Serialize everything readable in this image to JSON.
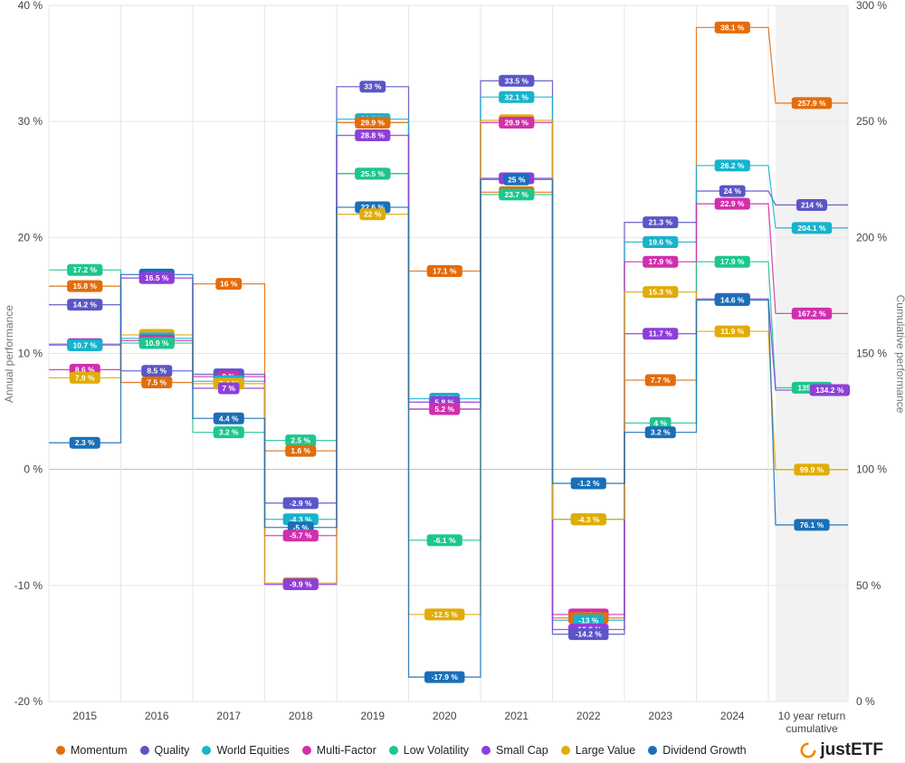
{
  "chart_data": {
    "type": "step-line",
    "ylabel": "Annual performance",
    "y2label": "Cumulative performance",
    "ylim": [
      -20,
      40
    ],
    "y2lim": [
      0,
      300
    ],
    "yticks": [
      "40 %",
      "30 %",
      "20 %",
      "10 %",
      "0 %",
      "-10 %",
      "-20 %"
    ],
    "y2ticks": [
      "300 %",
      "250 %",
      "200 %",
      "150 %",
      "100 %",
      "50 %",
      "0 %"
    ],
    "categories": [
      "2015",
      "2016",
      "2017",
      "2018",
      "2019",
      "2020",
      "2021",
      "2022",
      "2023",
      "2024"
    ],
    "cumulative_label": [
      "10 year return",
      "cumulative"
    ],
    "grid": true,
    "legend_position": "bottom",
    "series": [
      {
        "name": "Momentum",
        "color": "#e46c0a",
        "values": [
          15.8,
          7.5,
          16,
          1.6,
          29.9,
          17.1,
          23.9,
          -12.8,
          7.7,
          38.1
        ],
        "labels": [
          "15.8 %",
          "7.5 %",
          "16 %",
          "1.6 %",
          "29.9 %",
          "17.1 %",
          "23.9 %",
          "-12.8 %",
          "7.7 %",
          "38.1 %"
        ],
        "cumulative": 257.9,
        "cumulative_label": "257.9 %"
      },
      {
        "name": "Quality",
        "color": "#5b56c7",
        "values": [
          14.2,
          8.5,
          8.2,
          -2.9,
          33,
          5.2,
          33.5,
          -14.2,
          21.3,
          24
        ],
        "labels": [
          "14.2 %",
          "8.5 %",
          "8.2 %",
          "-2.9 %",
          "33 %",
          "5.2 %",
          "33.5 %",
          "-14.2 %",
          "21.3 %",
          "24 %"
        ],
        "cumulative": 214,
        "cumulative_label": "214 %"
      },
      {
        "name": "World Equities",
        "color": "#17b3cc",
        "values": [
          10.7,
          11.3,
          7.6,
          -4.3,
          30.2,
          6.1,
          32.1,
          -13,
          19.6,
          26.2
        ],
        "labels": [
          "10.7 %",
          "11.3 %",
          "7.6 %",
          "-4.3 %",
          "30.2 %",
          "6.1 %",
          "32.1 %",
          "-13 %",
          "19.6 %",
          "26.2 %"
        ],
        "cumulative": 204.1,
        "cumulative_label": "204.1 %"
      },
      {
        "name": "Multi-Factor",
        "color": "#d12fad",
        "values": [
          8.6,
          11.1,
          8,
          -5.7,
          25.5,
          5.2,
          29.9,
          -12.5,
          17.9,
          22.9
        ],
        "labels": [
          "8.6 %",
          "11.1 %",
          "8 %",
          "-5.7 %",
          "25.5 %",
          "5.2 %",
          "29.9 %",
          "-12.5 %",
          "17.9 %",
          "22.9 %"
        ],
        "cumulative": 167.2,
        "cumulative_label": "167.2 %"
      },
      {
        "name": "Low Volatility",
        "color": "#1dc68f",
        "values": [
          17.2,
          10.9,
          3.2,
          2.5,
          25.5,
          -6.1,
          23.7,
          -4.3,
          4,
          17.9
        ],
        "labels": [
          "17.2 %",
          "10.9 %",
          "3.2 %",
          "2.5 %",
          "25.5 %",
          "-6.1 %",
          "23.7 %",
          "-4.3 %",
          "4 %",
          "17.9 %"
        ],
        "cumulative": 135.2,
        "cumulative_label": "135.2 %"
      },
      {
        "name": "Small Cap",
        "color": "#8e3fd9",
        "values": [
          10.8,
          16.5,
          7,
          -9.9,
          28.8,
          5.8,
          25.1,
          -13.8,
          11.7,
          14.7
        ],
        "labels": [
          "10.8 %",
          "16.5 %",
          "7 %",
          "-9.9 %",
          "28.8 %",
          "5.8 %",
          "25.1 %",
          "-13.8 %",
          "11.7 %",
          "14.7 %"
        ],
        "cumulative": 134.2,
        "cumulative_label": "134.2 %"
      },
      {
        "name": "Large Value",
        "color": "#e0ac08",
        "values": [
          7.9,
          11.6,
          7.4,
          -9.8,
          22,
          -12.5,
          30.1,
          -4.3,
          15.3,
          11.9
        ],
        "labels": [
          "7.9 %",
          "11.6 %",
          "7.4 %",
          "-9.8 %",
          "22 %",
          "-12.5 %",
          "30.1 %",
          "-4.3 %",
          "15.3 %",
          "11.9 %"
        ],
        "cumulative": 99.9,
        "cumulative_label": "99.9 %"
      },
      {
        "name": "Dividend Growth",
        "color": "#1a6fb8",
        "values": [
          2.3,
          16.8,
          4.4,
          -5,
          22.6,
          -17.9,
          25,
          -1.2,
          3.2,
          14.6
        ],
        "labels": [
          "2.3 %",
          "16.8 %",
          "4.4 %",
          "-5 %",
          "22.6 %",
          "-17.9 %",
          "25 %",
          "-1.2 %",
          "3.2 %",
          "14.6 %"
        ],
        "cumulative": 76.1,
        "cumulative_label": "76.1 %"
      }
    ]
  },
  "brand": {
    "name": "justETF",
    "icon": "justetf-logo-icon",
    "color": "#f08a00"
  }
}
